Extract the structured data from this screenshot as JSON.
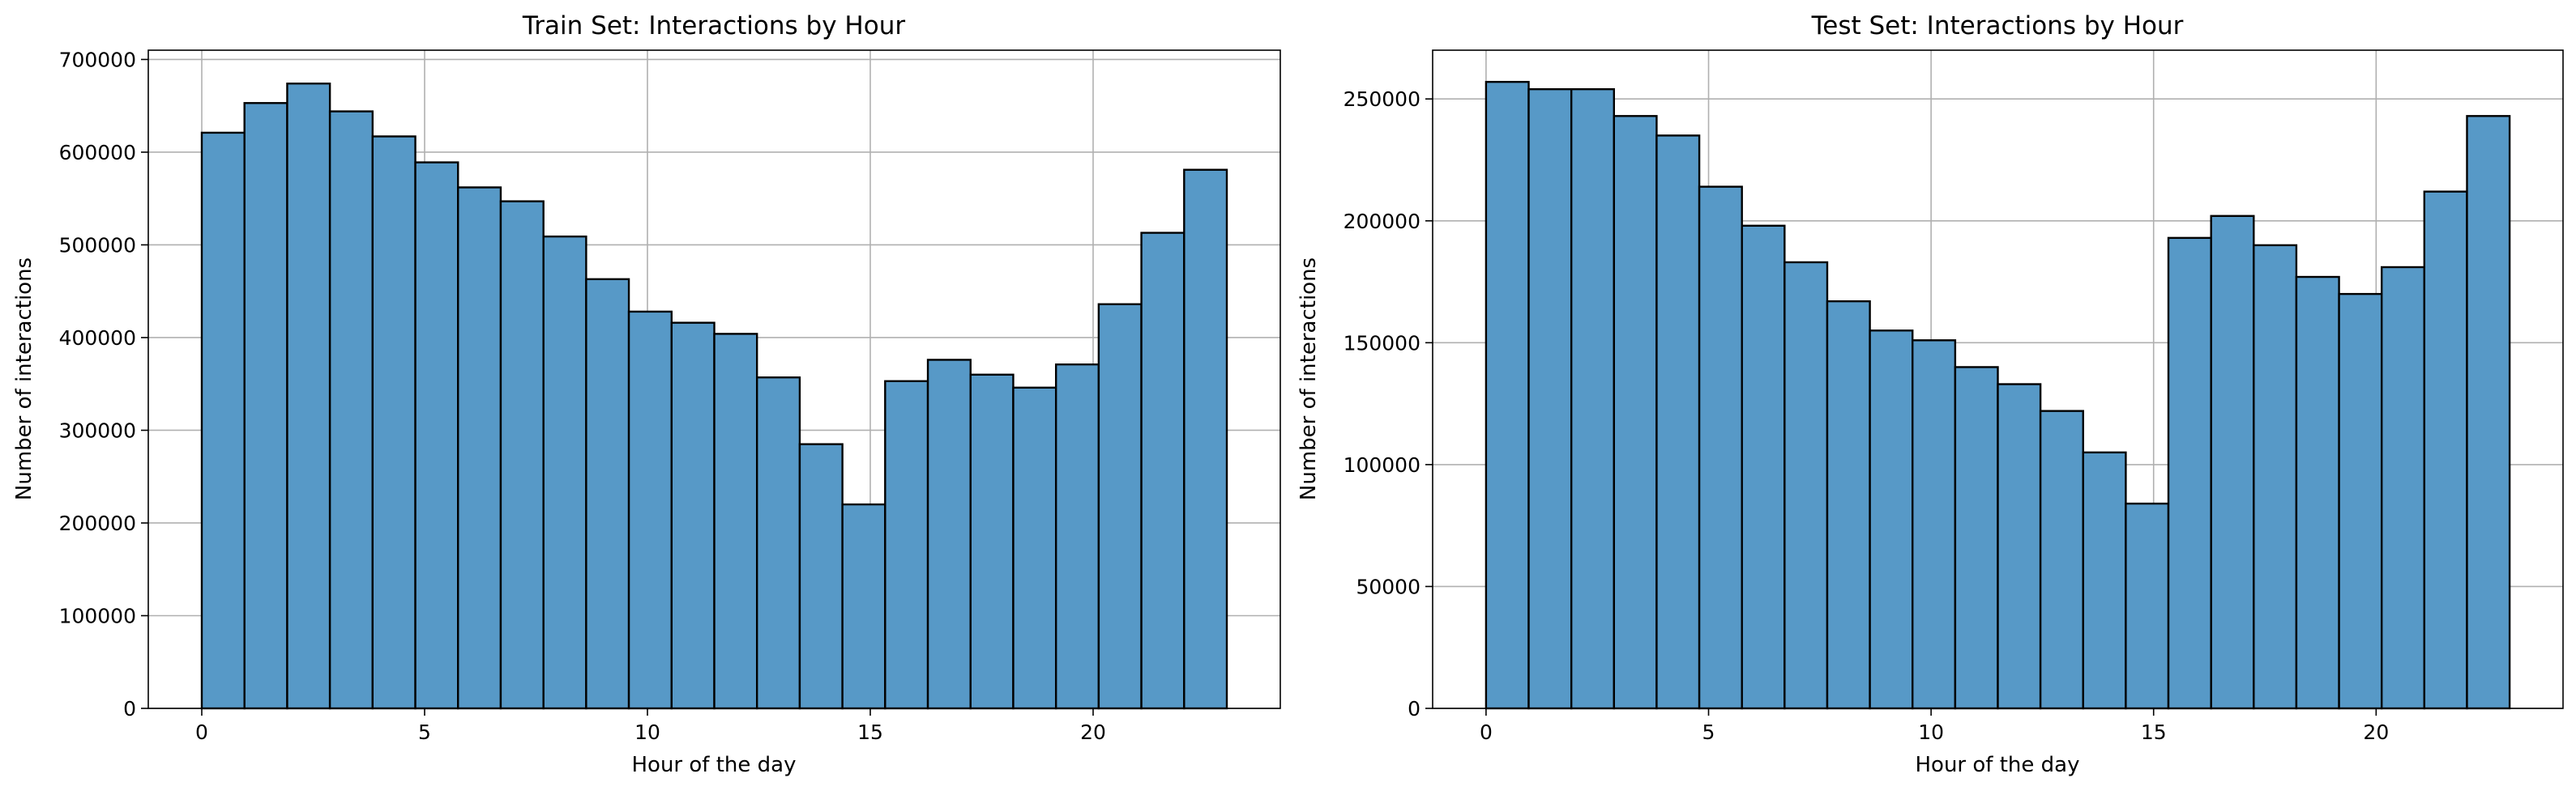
{
  "chart_data": [
    {
      "type": "bar",
      "title": "Train Set: Interactions by Hour",
      "xlabel": "Hour of the day",
      "ylabel": "Number of interactions",
      "bar_color": "#5799c7",
      "edge_color": "#000000",
      "grid": true,
      "xlim": [
        -1.2,
        24.2
      ],
      "ylim": [
        0,
        710000
      ],
      "xticks": [
        0,
        5,
        10,
        15,
        20
      ],
      "yticks": [
        0,
        100000,
        200000,
        300000,
        400000,
        500000,
        600000,
        700000
      ],
      "xtick_labels": [
        "0",
        "5",
        "10",
        "15",
        "20"
      ],
      "ytick_labels": [
        "0",
        "100000",
        "200000",
        "300000",
        "400000",
        "500000",
        "600000",
        "700000"
      ],
      "bin_edges": [
        0,
        0.958,
        1.917,
        2.875,
        3.833,
        4.792,
        5.75,
        6.708,
        7.667,
        8.625,
        9.583,
        10.542,
        11.5,
        12.458,
        13.417,
        14.375,
        15.333,
        16.292,
        17.25,
        18.208,
        19.167,
        20.125,
        21.083,
        22.042,
        23
      ],
      "values": [
        621000,
        653000,
        674000,
        644000,
        617000,
        589000,
        562000,
        547000,
        509000,
        463000,
        428000,
        416000,
        404000,
        357000,
        285000,
        220000,
        353000,
        376000,
        360000,
        346000,
        371000,
        436000,
        513000,
        581000
      ]
    },
    {
      "type": "bar",
      "title": "Test Set: Interactions by Hour",
      "xlabel": "Hour of the day",
      "ylabel": "Number of interactions",
      "bar_color": "#5799c7",
      "edge_color": "#000000",
      "grid": true,
      "xlim": [
        -1.2,
        24.2
      ],
      "ylim": [
        0,
        270000
      ],
      "xticks": [
        0,
        5,
        10,
        15,
        20
      ],
      "yticks": [
        0,
        50000,
        100000,
        150000,
        200000,
        250000
      ],
      "xtick_labels": [
        "0",
        "5",
        "10",
        "15",
        "20"
      ],
      "ytick_labels": [
        "0",
        "50000",
        "100000",
        "150000",
        "200000",
        "250000"
      ],
      "bin_edges": [
        0,
        0.958,
        1.917,
        2.875,
        3.833,
        4.792,
        5.75,
        6.708,
        7.667,
        8.625,
        9.583,
        10.542,
        11.5,
        12.458,
        13.417,
        14.375,
        15.333,
        16.292,
        17.25,
        18.208,
        19.167,
        20.125,
        21.083,
        22.042,
        23
      ],
      "values": [
        257000,
        254000,
        254000,
        243000,
        235000,
        214000,
        198000,
        183000,
        167000,
        155000,
        151000,
        140000,
        133000,
        122000,
        105000,
        84000,
        193000,
        202000,
        190000,
        177000,
        170000,
        181000,
        212000,
        243000
      ]
    }
  ]
}
